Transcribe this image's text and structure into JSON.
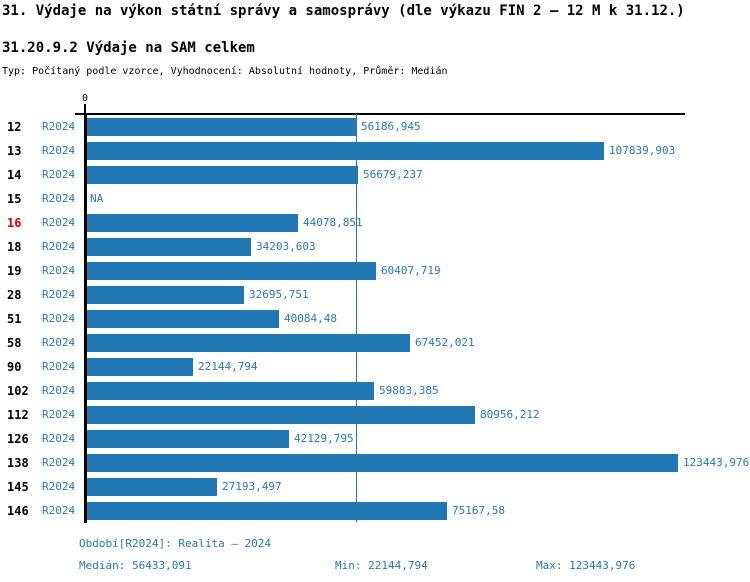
{
  "header": {
    "title": "31. Výdaje na výkon státní správy a samosprávy (dle výkazu FIN 2 — 12 M k 31.12.)",
    "section_title": "31.20.9.2 Výdaje na SAM celkem",
    "meta": "Typ: Počítaný podle vzorce, Vyhodnocení: Absolutní hodnoty, Průměr: Medián"
  },
  "chart_data": {
    "type": "bar",
    "orientation": "horizontal",
    "title": "31.20.9.2 Výdaje na SAM celkem",
    "categories": [
      "12",
      "13",
      "14",
      "15",
      "16",
      "18",
      "19",
      "28",
      "51",
      "58",
      "90",
      "102",
      "112",
      "126",
      "138",
      "145",
      "146"
    ],
    "series": [
      {
        "name": "R2024",
        "values": [
          56186.945,
          107839.903,
          56679.237,
          null,
          44078.851,
          34203.603,
          60407.719,
          32695.751,
          40084.48,
          67452.021,
          22144.794,
          59883.385,
          80956.212,
          42129.795,
          123443.976,
          27193.497,
          75167.58
        ]
      }
    ],
    "value_labels": [
      "56186,945",
      "107839,903",
      "56679,237",
      "NA",
      "44078,851",
      "34203,603",
      "60407,719",
      "32695,751",
      "40084,48",
      "67452,021",
      "22144,794",
      "59883,385",
      "80956,212",
      "42129,795",
      "123443,976",
      "27193,497",
      "75167,58"
    ],
    "na_label": "NA",
    "highlighted_category": "16",
    "axis_zero_label": "0",
    "xlim": [
      0,
      130000
    ],
    "median": 56433.091,
    "min": 22144.794,
    "max": 123443.976,
    "grid": "median-line-only",
    "legend_position": "none"
  },
  "footer": {
    "period_info": "Období[R2024]: Realita — 2024",
    "median": "Medián: 56433,091",
    "min": "Min: 22144,794",
    "max": "Max: 123443,976"
  },
  "colors": {
    "bar": "#2077B4",
    "text_blue": "#2878B4",
    "highlight_red": "#DD0000",
    "axis_black": "#000000",
    "background": "#FFFFFF"
  }
}
